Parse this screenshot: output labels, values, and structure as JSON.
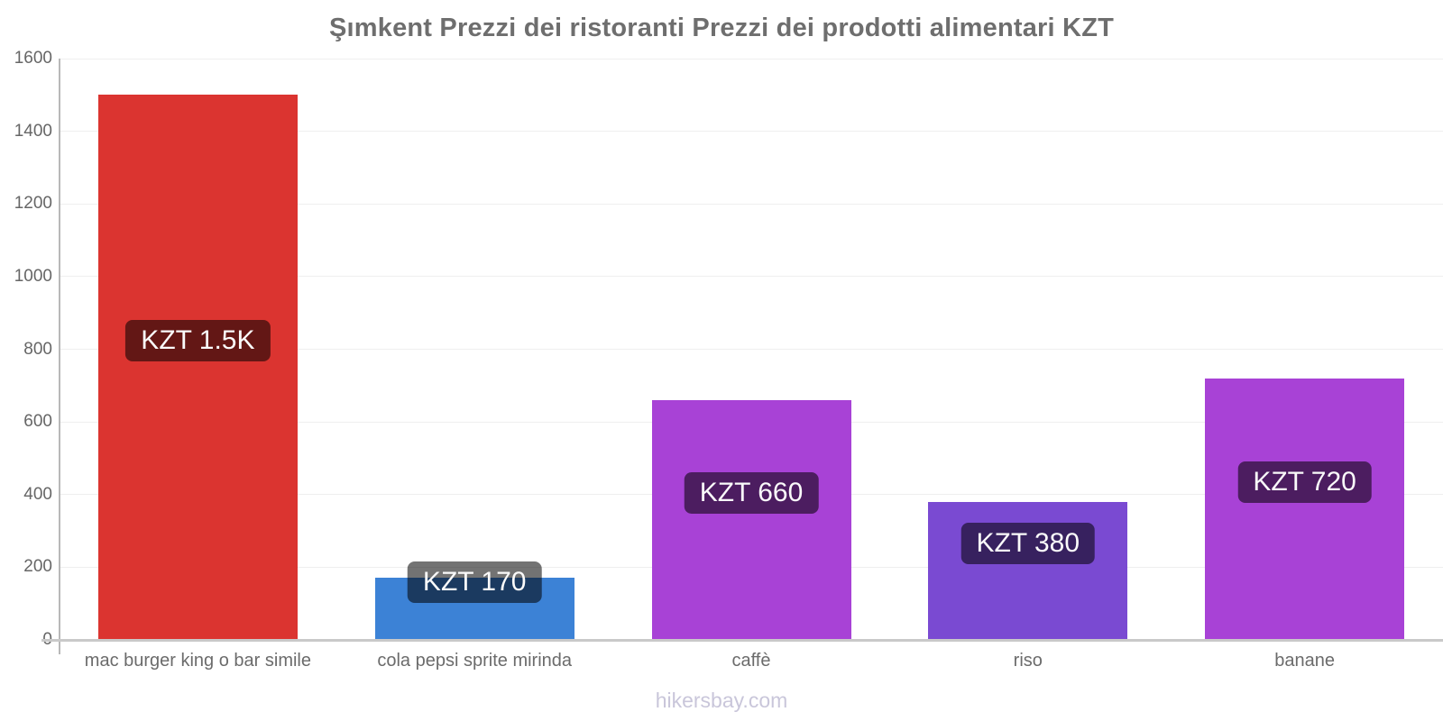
{
  "footer": "hikersbay.com",
  "chart_data": {
    "type": "bar",
    "title": "Şımkent Prezzi dei ristoranti Prezzi dei prodotti alimentari KZT",
    "xlabel": "",
    "ylabel": "",
    "currency": "KZT",
    "categories": [
      "mac burger king o bar simile",
      "cola pepsi sprite mirinda",
      "caffè",
      "riso",
      "banane"
    ],
    "values": [
      1500,
      170,
      660,
      380,
      720
    ],
    "value_labels": [
      "KZT 1.5K",
      "KZT 170",
      "KZT 660",
      "KZT 380",
      "KZT 720"
    ],
    "bar_colors": [
      "#db3430",
      "#3c82d6",
      "#a842d6",
      "#7a4ad2",
      "#a842d6"
    ],
    "ylim": [
      0,
      1600
    ],
    "yticks": [
      0,
      200,
      400,
      600,
      800,
      1000,
      1200,
      1400,
      1600
    ],
    "grid": true,
    "legend": false,
    "colors": {
      "title": "#6e6e6e",
      "axis_line": "#b8b8b8",
      "baseline": "#c9c9c9",
      "gridline": "#efefef",
      "tick_label": "#666666",
      "category_label": "#6b6b6b",
      "value_label_bg": "rgba(0,0,0,0.55)",
      "value_label_text": "#fafafa",
      "watermark": "#c9c6da"
    }
  }
}
